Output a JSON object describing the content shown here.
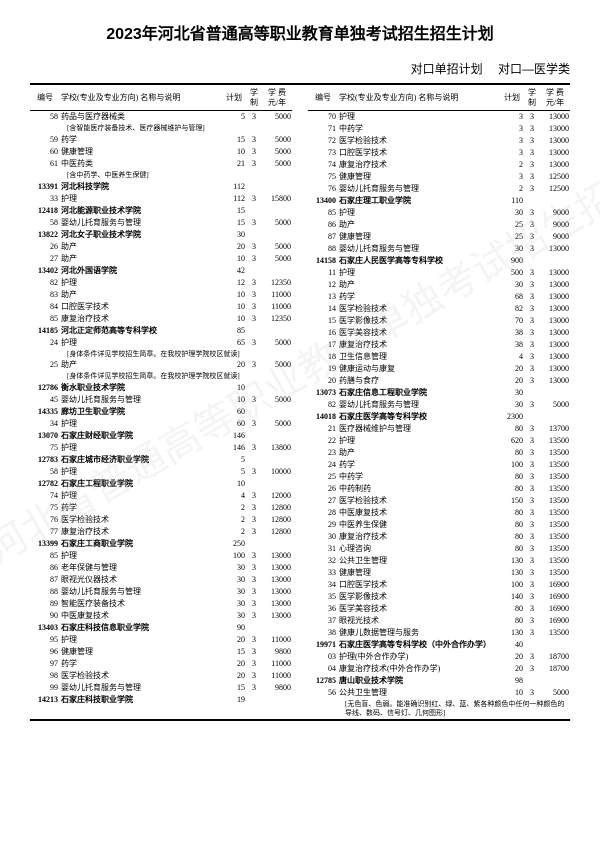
{
  "title": "2023年河北省普通高等职业教育单独考试招生招生计划",
  "subtitle_left": "对口单招计划",
  "subtitle_right": "对口—医学类",
  "headers": {
    "code": "编号",
    "name": "学校(专业及专业方向)\n名称与说明",
    "plan": "计划",
    "years": "学制",
    "fee": "学 费\n元/年"
  },
  "left_rows": [
    {
      "type": "major",
      "code": "58",
      "name": "药品与医疗器械类",
      "plan": "5",
      "years": "3",
      "fee": "5000"
    },
    {
      "type": "note",
      "name": "[含智能医疗装备技术、医疗器械维护与管理]"
    },
    {
      "type": "major",
      "code": "59",
      "name": "药学",
      "plan": "15",
      "years": "3",
      "fee": "5000"
    },
    {
      "type": "major",
      "code": "60",
      "name": "健康管理",
      "plan": "10",
      "years": "3",
      "fee": "5000"
    },
    {
      "type": "major",
      "code": "61",
      "name": "中医药类",
      "plan": "21",
      "years": "3",
      "fee": "5000"
    },
    {
      "type": "note",
      "name": "[含中药学、中医养生保健]"
    },
    {
      "type": "school",
      "code": "13391",
      "name": "河北科技学院",
      "plan": "112"
    },
    {
      "type": "major",
      "code": "33",
      "name": "护理",
      "plan": "112",
      "years": "3",
      "fee": "15800"
    },
    {
      "type": "school",
      "code": "12418",
      "name": "河北能源职业技术学院",
      "plan": "15"
    },
    {
      "type": "major",
      "code": "58",
      "name": "婴幼儿托育服务与管理",
      "plan": "15",
      "years": "3",
      "fee": "5000"
    },
    {
      "type": "school",
      "code": "13822",
      "name": "河北女子职业技术学院",
      "plan": "30"
    },
    {
      "type": "major",
      "code": "26",
      "name": "助产",
      "plan": "20",
      "years": "3",
      "fee": "5000"
    },
    {
      "type": "major",
      "code": "27",
      "name": "助产",
      "plan": "10",
      "years": "3",
      "fee": "5000"
    },
    {
      "type": "school",
      "code": "13402",
      "name": "河北外国语学院",
      "plan": "42"
    },
    {
      "type": "major",
      "code": "82",
      "name": "护理",
      "plan": "12",
      "years": "3",
      "fee": "12350"
    },
    {
      "type": "major",
      "code": "83",
      "name": "助产",
      "plan": "10",
      "years": "3",
      "fee": "11000"
    },
    {
      "type": "major",
      "code": "84",
      "name": "口腔医学技术",
      "plan": "10",
      "years": "3",
      "fee": "11000"
    },
    {
      "type": "major",
      "code": "85",
      "name": "康复治疗技术",
      "plan": "10",
      "years": "3",
      "fee": "12350"
    },
    {
      "type": "school",
      "code": "14185",
      "name": "河北正定师范高等专科学校",
      "plan": "85"
    },
    {
      "type": "major",
      "code": "24",
      "name": "护理",
      "plan": "65",
      "years": "3",
      "fee": "5000"
    },
    {
      "type": "note",
      "name": "[身体条件详见学校招生简章。在我校护理学院校区就读]"
    },
    {
      "type": "major",
      "code": "25",
      "name": "助产",
      "plan": "20",
      "years": "3",
      "fee": "5000"
    },
    {
      "type": "note",
      "name": "[身体条件详见学校招生简章。在我校护理学院校区就读]"
    },
    {
      "type": "school",
      "code": "12786",
      "name": "衡水职业技术学院",
      "plan": "10"
    },
    {
      "type": "major",
      "code": "45",
      "name": "婴幼儿托育服务与管理",
      "plan": "10",
      "years": "3",
      "fee": "5000"
    },
    {
      "type": "school",
      "code": "14335",
      "name": "廊坊卫生职业学院",
      "plan": "60"
    },
    {
      "type": "major",
      "code": "34",
      "name": "护理",
      "plan": "60",
      "years": "3",
      "fee": "5000"
    },
    {
      "type": "school",
      "code": "13070",
      "name": "石家庄财经职业学院",
      "plan": "146"
    },
    {
      "type": "major",
      "code": "75",
      "name": "护理",
      "plan": "146",
      "years": "3",
      "fee": "13800"
    },
    {
      "type": "school",
      "code": "12783",
      "name": "石家庄城市经济职业学院",
      "plan": "5"
    },
    {
      "type": "major",
      "code": "58",
      "name": "护理",
      "plan": "5",
      "years": "3",
      "fee": "10000"
    },
    {
      "type": "school",
      "code": "12782",
      "name": "石家庄工程职业学院",
      "plan": "10"
    },
    {
      "type": "major",
      "code": "74",
      "name": "护理",
      "plan": "4",
      "years": "3",
      "fee": "12000"
    },
    {
      "type": "major",
      "code": "75",
      "name": "药学",
      "plan": "2",
      "years": "3",
      "fee": "12800"
    },
    {
      "type": "major",
      "code": "76",
      "name": "医学检验技术",
      "plan": "2",
      "years": "3",
      "fee": "12800"
    },
    {
      "type": "major",
      "code": "77",
      "name": "康复治疗技术",
      "plan": "2",
      "years": "3",
      "fee": "12800"
    },
    {
      "type": "school",
      "code": "13399",
      "name": "石家庄工商职业学院",
      "plan": "250"
    },
    {
      "type": "major",
      "code": "85",
      "name": "护理",
      "plan": "100",
      "years": "3",
      "fee": "13000"
    },
    {
      "type": "major",
      "code": "86",
      "name": "老年保健与管理",
      "plan": "30",
      "years": "3",
      "fee": "13000"
    },
    {
      "type": "major",
      "code": "87",
      "name": "眼视光仪器技术",
      "plan": "30",
      "years": "3",
      "fee": "13000"
    },
    {
      "type": "major",
      "code": "88",
      "name": "婴幼儿托育服务与管理",
      "plan": "30",
      "years": "3",
      "fee": "13000"
    },
    {
      "type": "major",
      "code": "89",
      "name": "智能医疗装备技术",
      "plan": "30",
      "years": "3",
      "fee": "13000"
    },
    {
      "type": "major",
      "code": "90",
      "name": "中医康复技术",
      "plan": "30",
      "years": "3",
      "fee": "13000"
    },
    {
      "type": "school",
      "code": "13403",
      "name": "石家庄科技信息职业学院",
      "plan": "90"
    },
    {
      "type": "major",
      "code": "95",
      "name": "护理",
      "plan": "20",
      "years": "3",
      "fee": "11000"
    },
    {
      "type": "major",
      "code": "96",
      "name": "健康管理",
      "plan": "15",
      "years": "3",
      "fee": "9800"
    },
    {
      "type": "major",
      "code": "97",
      "name": "药学",
      "plan": "20",
      "years": "3",
      "fee": "11000"
    },
    {
      "type": "major",
      "code": "98",
      "name": "医学检验技术",
      "plan": "20",
      "years": "3",
      "fee": "11000"
    },
    {
      "type": "major",
      "code": "99",
      "name": "婴幼儿托育服务与管理",
      "plan": "15",
      "years": "3",
      "fee": "9800"
    },
    {
      "type": "school",
      "code": "14213",
      "name": "石家庄科技职业学院",
      "plan": "19"
    }
  ],
  "right_rows": [
    {
      "type": "major",
      "code": "70",
      "name": "护理",
      "plan": "3",
      "years": "3",
      "fee": "13000"
    },
    {
      "type": "major",
      "code": "71",
      "name": "中药学",
      "plan": "3",
      "years": "3",
      "fee": "13000"
    },
    {
      "type": "major",
      "code": "72",
      "name": "医学检验技术",
      "plan": "3",
      "years": "3",
      "fee": "13000"
    },
    {
      "type": "major",
      "code": "73",
      "name": "口腔医学技术",
      "plan": "3",
      "years": "3",
      "fee": "13000"
    },
    {
      "type": "major",
      "code": "74",
      "name": "康复治疗技术",
      "plan": "2",
      "years": "3",
      "fee": "13000"
    },
    {
      "type": "major",
      "code": "75",
      "name": "健康管理",
      "plan": "3",
      "years": "3",
      "fee": "12500"
    },
    {
      "type": "major",
      "code": "76",
      "name": "婴幼儿托育服务与管理",
      "plan": "2",
      "years": "3",
      "fee": "12500"
    },
    {
      "type": "school",
      "code": "13400",
      "name": "石家庄理工职业学院",
      "plan": "110"
    },
    {
      "type": "major",
      "code": "85",
      "name": "护理",
      "plan": "30",
      "years": "3",
      "fee": "9000"
    },
    {
      "type": "major",
      "code": "86",
      "name": "助产",
      "plan": "25",
      "years": "3",
      "fee": "9000"
    },
    {
      "type": "major",
      "code": "87",
      "name": "健康管理",
      "plan": "25",
      "years": "3",
      "fee": "9000"
    },
    {
      "type": "major",
      "code": "88",
      "name": "婴幼儿托育服务与管理",
      "plan": "30",
      "years": "3",
      "fee": "13000"
    },
    {
      "type": "school",
      "code": "14158",
      "name": "石家庄人民医学高等专科学校",
      "plan": "900"
    },
    {
      "type": "major",
      "code": "11",
      "name": "护理",
      "plan": "500",
      "years": "3",
      "fee": "13000"
    },
    {
      "type": "major",
      "code": "12",
      "name": "助产",
      "plan": "30",
      "years": "3",
      "fee": "13000"
    },
    {
      "type": "major",
      "code": "13",
      "name": "药学",
      "plan": "68",
      "years": "3",
      "fee": "13000"
    },
    {
      "type": "major",
      "code": "14",
      "name": "医学检验技术",
      "plan": "82",
      "years": "3",
      "fee": "13000"
    },
    {
      "type": "major",
      "code": "15",
      "name": "医学影像技术",
      "plan": "70",
      "years": "3",
      "fee": "13000"
    },
    {
      "type": "major",
      "code": "16",
      "name": "医学美容技术",
      "plan": "38",
      "years": "3",
      "fee": "13000"
    },
    {
      "type": "major",
      "code": "17",
      "name": "康复治疗技术",
      "plan": "38",
      "years": "3",
      "fee": "13000"
    },
    {
      "type": "major",
      "code": "18",
      "name": "卫生信息管理",
      "plan": "4",
      "years": "3",
      "fee": "13000"
    },
    {
      "type": "major",
      "code": "19",
      "name": "健康运动与康复",
      "plan": "20",
      "years": "3",
      "fee": "13000"
    },
    {
      "type": "major",
      "code": "20",
      "name": "药膳与食疗",
      "plan": "20",
      "years": "3",
      "fee": "13000"
    },
    {
      "type": "school",
      "code": "13073",
      "name": "石家庄信息工程职业学院",
      "plan": "30"
    },
    {
      "type": "major",
      "code": "82",
      "name": "婴幼儿托育服务与管理",
      "plan": "30",
      "years": "3",
      "fee": "5000"
    },
    {
      "type": "school",
      "code": "14018",
      "name": "石家庄医学高等专科学校",
      "plan": "2300"
    },
    {
      "type": "major",
      "code": "21",
      "name": "医疗器械维护与管理",
      "plan": "80",
      "years": "3",
      "fee": "13700"
    },
    {
      "type": "major",
      "code": "22",
      "name": "护理",
      "plan": "620",
      "years": "3",
      "fee": "13500"
    },
    {
      "type": "major",
      "code": "23",
      "name": "助产",
      "plan": "80",
      "years": "3",
      "fee": "13500"
    },
    {
      "type": "major",
      "code": "24",
      "name": "药学",
      "plan": "100",
      "years": "3",
      "fee": "13500"
    },
    {
      "type": "major",
      "code": "25",
      "name": "中药学",
      "plan": "80",
      "years": "3",
      "fee": "13500"
    },
    {
      "type": "major",
      "code": "26",
      "name": "中药制药",
      "plan": "80",
      "years": "3",
      "fee": "13500"
    },
    {
      "type": "major",
      "code": "27",
      "name": "医学检验技术",
      "plan": "150",
      "years": "3",
      "fee": "13500"
    },
    {
      "type": "major",
      "code": "28",
      "name": "中医康复技术",
      "plan": "80",
      "years": "3",
      "fee": "13500"
    },
    {
      "type": "major",
      "code": "29",
      "name": "中医养生保健",
      "plan": "80",
      "years": "3",
      "fee": "13500"
    },
    {
      "type": "major",
      "code": "30",
      "name": "康复治疗技术",
      "plan": "80",
      "years": "3",
      "fee": "13500"
    },
    {
      "type": "major",
      "code": "31",
      "name": "心理咨询",
      "plan": "80",
      "years": "3",
      "fee": "13500"
    },
    {
      "type": "major",
      "code": "32",
      "name": "公共卫生管理",
      "plan": "130",
      "years": "3",
      "fee": "13500"
    },
    {
      "type": "major",
      "code": "33",
      "name": "健康管理",
      "plan": "130",
      "years": "3",
      "fee": "13500"
    },
    {
      "type": "major",
      "code": "34",
      "name": "口腔医学技术",
      "plan": "100",
      "years": "3",
      "fee": "16900"
    },
    {
      "type": "major",
      "code": "35",
      "name": "医学影像技术",
      "plan": "140",
      "years": "3",
      "fee": "16900"
    },
    {
      "type": "major",
      "code": "36",
      "name": "医学美容技术",
      "plan": "80",
      "years": "3",
      "fee": "16900"
    },
    {
      "type": "major",
      "code": "37",
      "name": "眼视光技术",
      "plan": "80",
      "years": "3",
      "fee": "16900"
    },
    {
      "type": "major",
      "code": "38",
      "name": "健康儿数据管理与服务",
      "plan": "130",
      "years": "3",
      "fee": "13500"
    },
    {
      "type": "school",
      "code": "19971",
      "name": "石家庄医学高等专科学校（中外合作办学）",
      "plan": "40"
    },
    {
      "type": "major",
      "code": "03",
      "name": "护理(中外合作办学)",
      "plan": "20",
      "years": "3",
      "fee": "18700"
    },
    {
      "type": "major",
      "code": "04",
      "name": "康复治疗技术(中外合作办学)",
      "plan": "20",
      "years": "3",
      "fee": "18700"
    },
    {
      "type": "school",
      "code": "12785",
      "name": "唐山职业技术学院",
      "plan": "98"
    },
    {
      "type": "major",
      "code": "56",
      "name": "公共卫生管理",
      "plan": "10",
      "years": "3",
      "fee": "5000"
    },
    {
      "type": "note",
      "name": "[无色盲、色弱。能准确识别红、绿、蓝、紫各种颜色中任何一种颜色的导线、数码、信号灯、几何图形]"
    }
  ]
}
